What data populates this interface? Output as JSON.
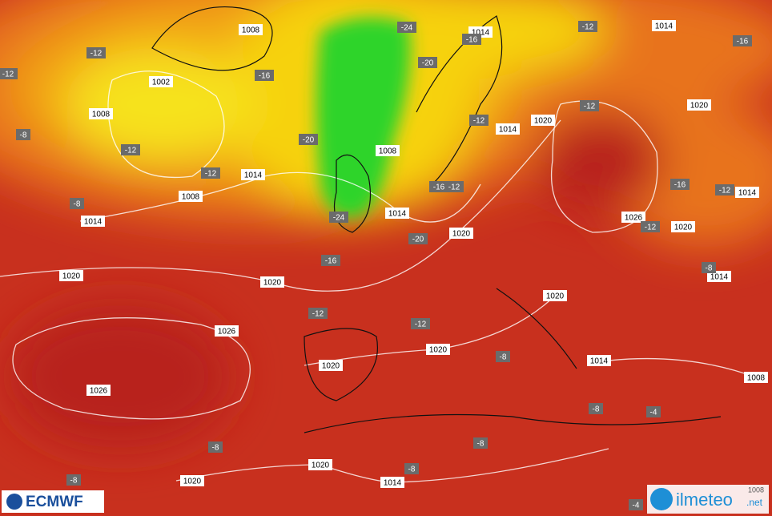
{
  "isobar_labels": [
    "1008",
    "1002",
    "1008",
    "1014",
    "1008",
    "1014",
    "1020",
    "1020",
    "1026",
    "1026",
    "1020",
    "1020",
    "1020",
    "1020",
    "1014",
    "1008",
    "1014",
    "1020",
    "1014",
    "1014",
    "1020",
    "1014",
    "1020",
    "1026",
    "1020",
    "1014",
    "1014",
    "1020",
    "1014",
    "1008"
  ],
  "temperature_labels": [
    "-12",
    "-12",
    "-16",
    "-12",
    "-12",
    "-8",
    "-8",
    "-20",
    "-24",
    "-20",
    "-16",
    "-12",
    "-16",
    "-12",
    "-12",
    "-16",
    "-12",
    "-24",
    "-20",
    "-16",
    "-12",
    "-16",
    "-12",
    "-8",
    "-12",
    "-12",
    "-8",
    "-8",
    "-4",
    "-8",
    "-8",
    "-8",
    "-8",
    "-4"
  ],
  "logos": {
    "left": "ECMWF",
    "right": "ilmeteo",
    "right_suffix": ".net",
    "corner_label": "1008"
  }
}
